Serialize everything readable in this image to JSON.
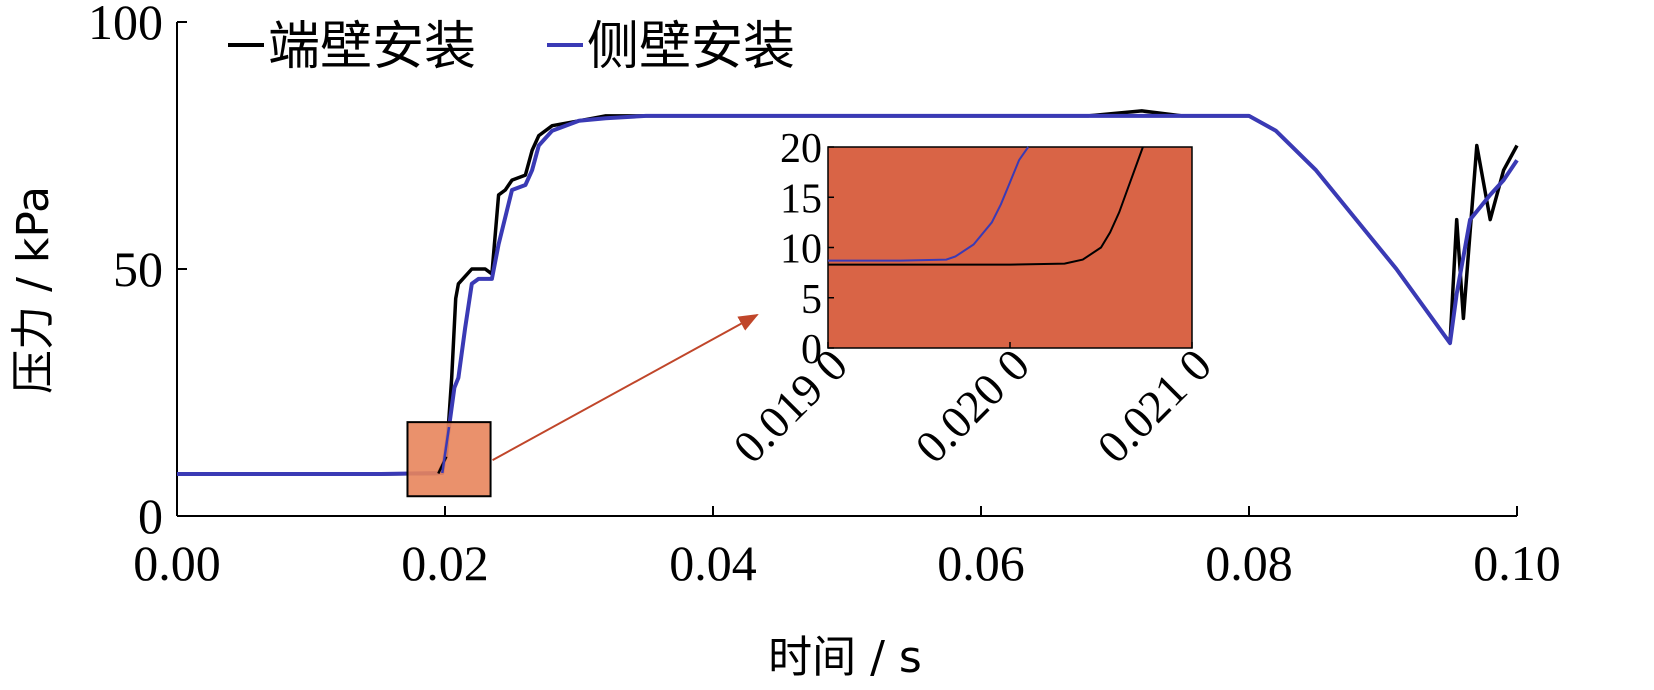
{
  "chart_data": [
    {
      "type": "line",
      "title": "",
      "xlabel": "时间 / s",
      "ylabel": "压力 / kPa",
      "xlim": [
        0,
        0.1
      ],
      "ylim": [
        0,
        100
      ],
      "x_ticks": [
        0,
        0.02,
        0.04,
        0.06,
        0.08,
        0.1
      ],
      "x_tick_labels": [
        "0.00",
        "0.02",
        "0.04",
        "0.06",
        "0.08",
        "0.10"
      ],
      "y_ticks": [
        0,
        50,
        100
      ],
      "y_tick_labels": [
        "0",
        "50",
        "100"
      ],
      "legend_position": "top-left",
      "series": [
        {
          "name": "端壁安装",
          "color": "#000000",
          "x": [
            0,
            0.005,
            0.01,
            0.015,
            0.0195,
            0.0201,
            0.0205,
            0.0208,
            0.021,
            0.022,
            0.023,
            0.0235,
            0.024,
            0.0245,
            0.025,
            0.026,
            0.0265,
            0.027,
            0.028,
            0.03,
            0.032,
            0.035,
            0.04,
            0.05,
            0.06,
            0.065,
            0.068,
            0.072,
            0.075,
            0.08,
            0.082,
            0.085,
            0.088,
            0.091,
            0.095,
            0.0955,
            0.096,
            0.097,
            0.098,
            0.099,
            0.1
          ],
          "y": [
            8.5,
            8.5,
            8.5,
            8.5,
            8.6,
            12,
            28,
            44,
            47,
            50,
            50,
            49,
            65,
            66,
            68,
            69,
            74,
            77,
            79,
            80,
            81,
            81,
            81,
            81,
            81,
            81,
            81,
            82,
            81,
            81,
            78,
            70,
            60,
            50,
            35,
            60,
            40,
            75,
            60,
            70,
            75
          ]
        },
        {
          "name": "侧壁安装",
          "color": "#3a3ab5",
          "x": [
            0,
            0.005,
            0.01,
            0.015,
            0.0198,
            0.0203,
            0.0207,
            0.021,
            0.0215,
            0.022,
            0.0225,
            0.023,
            0.0235,
            0.024,
            0.025,
            0.026,
            0.0265,
            0.027,
            0.028,
            0.03,
            0.032,
            0.035,
            0.04,
            0.05,
            0.06,
            0.07,
            0.08,
            0.082,
            0.085,
            0.088,
            0.091,
            0.095,
            0.0955,
            0.0965,
            0.098,
            0.099,
            0.1
          ],
          "y": [
            8.5,
            8.5,
            8.5,
            8.5,
            8.7,
            18,
            26,
            28,
            38,
            47,
            48,
            48,
            48,
            55,
            66,
            67,
            70,
            75,
            78,
            80,
            80.5,
            81,
            81,
            81,
            81,
            81,
            81,
            78,
            70,
            60,
            50,
            35,
            45,
            60,
            65,
            68,
            72
          ]
        }
      ],
      "highlight_region": {
        "xlim": [
          0.0172,
          0.0234
        ],
        "ylim": [
          4,
          19
        ]
      }
    },
    {
      "type": "line",
      "title": "",
      "xlabel": "",
      "ylabel": "",
      "xlim": [
        0.019,
        0.021
      ],
      "ylim": [
        0,
        20
      ],
      "x_ticks": [
        0.019,
        0.02,
        0.021
      ],
      "x_tick_labels": [
        "0.019 0",
        "0.020 0",
        "0.021 0"
      ],
      "y_ticks": [
        0,
        5,
        10,
        15,
        20
      ],
      "y_tick_labels": [
        "0",
        "5",
        "10",
        "15",
        "20"
      ],
      "background_color": "#d96446",
      "series": [
        {
          "color": "#000000",
          "x": [
            0.019,
            0.0195,
            0.02,
            0.0203,
            0.0204,
            0.0205,
            0.02055,
            0.0206,
            0.02065,
            0.0207,
            0.02073
          ],
          "y": [
            8.3,
            8.3,
            8.3,
            8.4,
            8.8,
            10.0,
            11.5,
            13.5,
            16.0,
            18.5,
            20
          ]
        },
        {
          "color": "#3a3ab5",
          "x": [
            0.019,
            0.0194,
            0.01965,
            0.0197,
            0.0198,
            0.0199,
            0.01995,
            0.02,
            0.02005,
            0.0201
          ],
          "y": [
            8.7,
            8.7,
            8.8,
            9.1,
            10.3,
            12.5,
            14.3,
            16.5,
            18.7,
            20
          ]
        }
      ]
    }
  ]
}
